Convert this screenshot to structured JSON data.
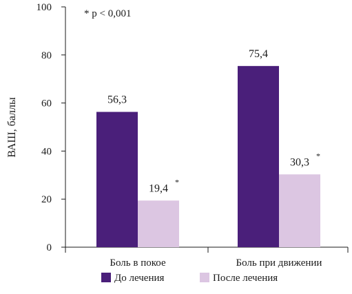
{
  "chart_data": {
    "type": "bar",
    "categories": [
      "Боль в покое",
      "Боль при движении"
    ],
    "series": [
      {
        "name": "До лечения",
        "color": "#4a1f7a",
        "values": [
          56.3,
          75.4
        ],
        "labels": [
          "56,3",
          "75,4"
        ],
        "marks": [
          "",
          ""
        ]
      },
      {
        "name": "После лечения",
        "color": "#dcc6e2",
        "values": [
          19.4,
          30.3
        ],
        "labels": [
          "19,4",
          "30,3"
        ],
        "marks": [
          "*",
          "*"
        ]
      }
    ],
    "ylabel": "ВАШ, баллы",
    "xlabel": "",
    "ylim": [
      0,
      100
    ],
    "yticks": [
      0,
      20,
      40,
      60,
      80,
      100
    ],
    "annotation": "* p < 0,001",
    "legend_position": "bottom",
    "grid": false
  }
}
